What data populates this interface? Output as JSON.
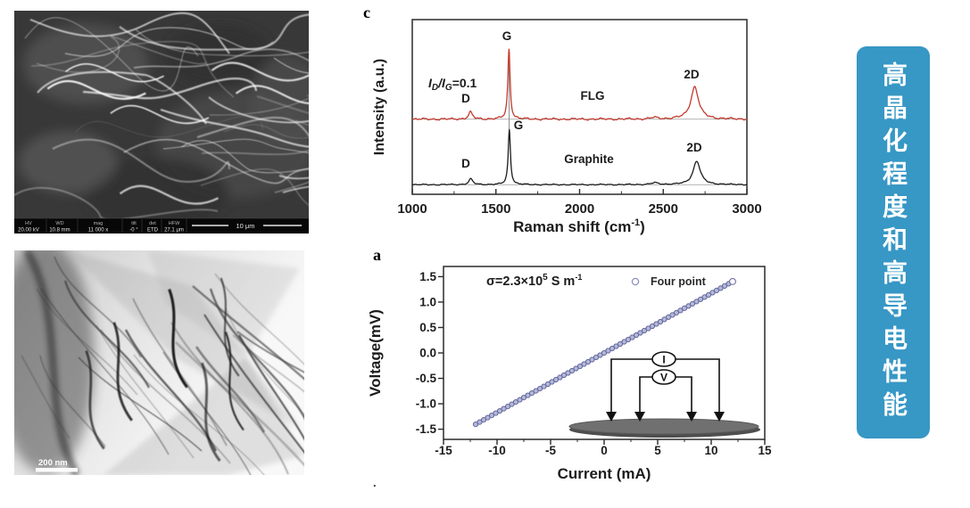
{
  "page": {
    "background": "#ffffff"
  },
  "banner": {
    "text": "高晶化程度和高导电性能",
    "bg": "#3797c5",
    "fg": "#ffffff"
  },
  "sem_image": {
    "kind": "SEM micrograph",
    "info_bar": {
      "columns": [
        {
          "label": "HV",
          "value": "20.00 kV"
        },
        {
          "label": "WD",
          "value": "10.8 mm"
        },
        {
          "label": "mag",
          "value": "11 000 x"
        },
        {
          "label": "tilt",
          "value": "-0 °"
        },
        {
          "label": "det",
          "value": "ETD"
        },
        {
          "label": "HFW",
          "value": "27.1 μm"
        }
      ],
      "scale_bar_label": "10 μm"
    }
  },
  "tem_image": {
    "kind": "TEM micrograph",
    "scale_bar_label": "200 nm"
  },
  "chart_data": [
    {
      "type": "line",
      "panel_label": "c",
      "xlabel": "Raman shift (cm⁻¹)",
      "xlabel_parts": {
        "base": "Raman shift (cm",
        "sup": "-1",
        "close": ")"
      },
      "ylabel": "Intensity (a.u.)",
      "xlim": [
        1000,
        3000
      ],
      "xticks": [
        1000,
        1500,
        2000,
        2500,
        3000
      ],
      "yaxis_note": "arbitrary units, no tick labels",
      "annotation": {
        "text": "ID/IG=0.1",
        "parts": {
          "i1": "I",
          "s1": "D",
          "i2": "/I",
          "s2": "G",
          "eq": "=0.1"
        }
      },
      "series": [
        {
          "name": "FLG",
          "color": "#c23b2e",
          "baseline_offset": 0.43,
          "noise": 0.007,
          "peaks": [
            {
              "label": "D",
              "center": 1348,
              "height": 0.04,
              "gamma": 14
            },
            {
              "label": "G",
              "center": 1578,
              "height": 0.4,
              "gamma": 8
            },
            {
              "label": "",
              "center": 2445,
              "height": 0.008,
              "gamma": 25
            },
            {
              "label": "2D",
              "center": 2688,
              "height": 0.185,
              "gamma": 28
            }
          ]
        },
        {
          "name": "Graphite",
          "color": "#1c1c1c",
          "baseline_offset": 0.055,
          "noise": 0.004,
          "peaks": [
            {
              "label": "D",
              "center": 1350,
              "height": 0.033,
              "gamma": 14
            },
            {
              "label": "G",
              "center": 1580,
              "height": 0.315,
              "gamma": 8
            },
            {
              "label": "",
              "center": 2450,
              "height": 0.01,
              "gamma": 25
            },
            {
              "label": "2D",
              "center": 2700,
              "height": 0.135,
              "gamma": 26
            }
          ]
        }
      ],
      "curve_labels": [
        {
          "text": "D",
          "x": 124,
          "y": 113
        },
        {
          "text": "G",
          "x": 170,
          "y": 43
        },
        {
          "text": "2D",
          "x": 377,
          "y": 86
        },
        {
          "text": "FLG",
          "x": 266,
          "y": 110
        },
        {
          "text": "D",
          "x": 124,
          "y": 186
        },
        {
          "text": "G",
          "x": 183,
          "y": 143
        },
        {
          "text": "2D",
          "x": 380,
          "y": 168
        },
        {
          "text": "Graphite",
          "x": 262,
          "y": 181
        }
      ]
    },
    {
      "type": "scatter",
      "panel_label": "a",
      "xlabel": "Current (mA)",
      "ylabel": "Voltage(mV)",
      "xlim": [
        -15,
        15
      ],
      "ylim": [
        -1.7,
        1.7
      ],
      "xticks": [
        -15,
        -10,
        -5,
        0,
        5,
        10,
        15
      ],
      "yticks": [
        "1.5",
        "1.0",
        "0.5",
        "0.0",
        "-0.5",
        "-1.0",
        "-1.5"
      ],
      "conductivity": {
        "text": "σ=2.3×10⁵ S m⁻¹",
        "parts": {
          "base": "σ=2.3×10",
          "sup": "5",
          "mid": " S m",
          "sup2": "-1"
        }
      },
      "legend": {
        "label": "Four point",
        "marker": "open-circle",
        "position": "top-right"
      },
      "series": [
        {
          "name": "Four point",
          "marker_fill": "#b4b8da",
          "marker_stroke": "#62679a",
          "x_min": -12,
          "x_max": 12,
          "n_points": 65,
          "slope_mV_per_mA": 0.117,
          "intercept_mV": 0
        }
      ],
      "inset": {
        "current_label": "I",
        "voltage_label": "V",
        "description": "four-point probe contacts on disc sample"
      },
      "stray_mark": "."
    }
  ]
}
